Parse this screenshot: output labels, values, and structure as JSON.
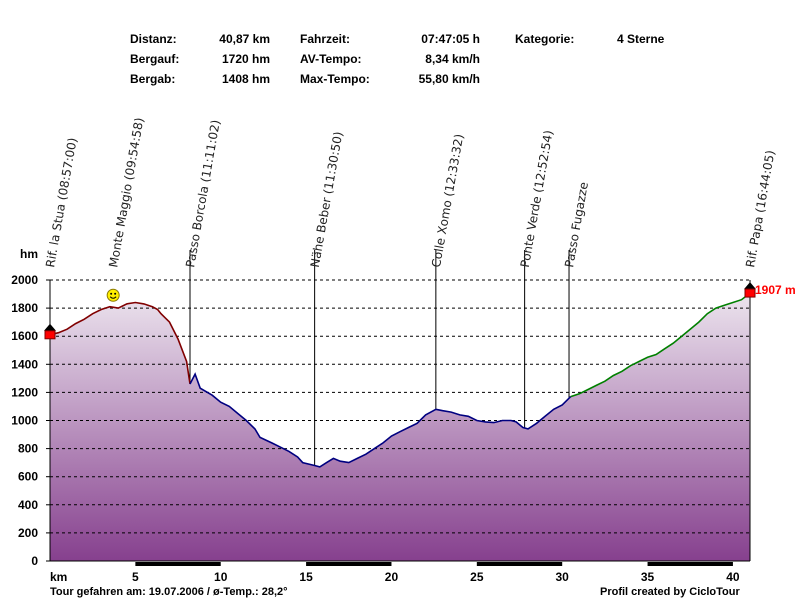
{
  "stats": {
    "distanz_label": "Distanz:",
    "distanz_value": "40,87 km",
    "bergauf_label": "Bergauf:",
    "bergauf_value": "1720 hm",
    "bergab_label": "Bergab:",
    "bergab_value": "1408 hm",
    "fahrzeit_label": "Fahrzeit:",
    "fahrzeit_value": "07:47:05 h",
    "avtempo_label": "AV-Tempo:",
    "avtempo_value": "8,34 km/h",
    "maxtempo_label": "Max-Tempo:",
    "maxtempo_value": "55,80 km/h",
    "kategorie_label": "Kategorie:",
    "kategorie_value": "4 Sterne"
  },
  "footer": {
    "left": "Tour gefahren am: 19.07.2006  /  ø-Temp.: 28,2°",
    "right": "Profil created by CicloTour"
  },
  "colors": {
    "fill_top": "#ece4ee",
    "fill_bottom": "#86408e",
    "line_downhill": "#800000",
    "line_flat": "#000080",
    "line_uphill": "#008000",
    "end_label": "#ff0000"
  },
  "chart_data": {
    "type": "area",
    "ylabel": "hm",
    "xlabel": "km",
    "xlim": [
      0,
      41
    ],
    "ylim": [
      0,
      2000
    ],
    "yticks": [
      0,
      200,
      400,
      600,
      800,
      1000,
      1200,
      1400,
      1600,
      1800,
      2000
    ],
    "xticks": [
      5,
      10,
      15,
      20,
      25,
      30,
      35,
      40
    ],
    "grid": true,
    "end_label": "1907 m",
    "profile": [
      [
        0,
        1610
      ],
      [
        0.5,
        1625
      ],
      [
        1,
        1650
      ],
      [
        1.5,
        1690
      ],
      [
        2,
        1720
      ],
      [
        2.5,
        1760
      ],
      [
        3,
        1790
      ],
      [
        3.5,
        1810
      ],
      [
        4,
        1800
      ],
      [
        4.5,
        1830
      ],
      [
        5,
        1840
      ],
      [
        5.5,
        1830
      ],
      [
        6,
        1810
      ],
      [
        6.3,
        1790
      ],
      [
        6.5,
        1760
      ],
      [
        7,
        1700
      ],
      [
        7.5,
        1580
      ],
      [
        8,
        1420
      ],
      [
        8.5,
        1330
      ],
      [
        8.2,
        1260
      ],
      [
        8.8,
        1230
      ],
      [
        9.5,
        1180
      ],
      [
        10,
        1130
      ],
      [
        10.5,
        1100
      ],
      [
        11,
        1050
      ],
      [
        11.5,
        1000
      ],
      [
        12,
        940
      ],
      [
        12.3,
        880
      ],
      [
        13,
        840
      ],
      [
        13.5,
        810
      ],
      [
        14,
        780
      ],
      [
        14.5,
        740
      ],
      [
        14.8,
        700
      ],
      [
        15.5,
        680
      ],
      [
        15.8,
        670
      ],
      [
        16.2,
        700
      ],
      [
        16.6,
        730
      ],
      [
        17,
        710
      ],
      [
        17.5,
        700
      ],
      [
        18,
        730
      ],
      [
        18.5,
        760
      ],
      [
        19,
        800
      ],
      [
        19.5,
        840
      ],
      [
        20,
        890
      ],
      [
        20.5,
        920
      ],
      [
        21,
        950
      ],
      [
        21.5,
        980
      ],
      [
        22,
        1040
      ],
      [
        22.6,
        1080
      ],
      [
        23,
        1070
      ],
      [
        23.5,
        1060
      ],
      [
        24,
        1040
      ],
      [
        24.5,
        1030
      ],
      [
        25,
        1000
      ],
      [
        25.5,
        990
      ],
      [
        26,
        985
      ],
      [
        26.5,
        1000
      ],
      [
        27,
        1000
      ],
      [
        27.3,
        990
      ],
      [
        27.7,
        950
      ],
      [
        28,
        940
      ],
      [
        28.5,
        980
      ],
      [
        29,
        1030
      ],
      [
        29.5,
        1080
      ],
      [
        30,
        1110
      ],
      [
        30.5,
        1170
      ],
      [
        31,
        1190
      ],
      [
        31.5,
        1220
      ],
      [
        32,
        1250
      ],
      [
        32.5,
        1280
      ],
      [
        33,
        1320
      ],
      [
        33.5,
        1350
      ],
      [
        34,
        1390
      ],
      [
        34.5,
        1420
      ],
      [
        35,
        1450
      ],
      [
        35.5,
        1470
      ],
      [
        36,
        1510
      ],
      [
        36.5,
        1550
      ],
      [
        37,
        1600
      ],
      [
        37.5,
        1650
      ],
      [
        38,
        1700
      ],
      [
        38.5,
        1760
      ],
      [
        39,
        1800
      ],
      [
        39.5,
        1820
      ],
      [
        40,
        1840
      ],
      [
        40.5,
        1860
      ],
      [
        41,
        1907
      ]
    ],
    "segments": [
      {
        "from": 0,
        "to": 8.2,
        "kind": "downhill"
      },
      {
        "from": 8.2,
        "to": 30.5,
        "kind": "flat"
      },
      {
        "from": 30.5,
        "to": 41,
        "kind": "uphill"
      }
    ],
    "waypoints": [
      {
        "km": 0,
        "label": "Rif. la Stua (08:57:00)"
      },
      {
        "km": 3.7,
        "label": "Monte Maggio (09:54:58)"
      },
      {
        "km": 8.2,
        "label": "Passo Borcola (11:11:02)"
      },
      {
        "km": 15.5,
        "label": "Nähe Beber (11:30:50)"
      },
      {
        "km": 22.6,
        "label": "Colle Xomo (12:33:32)"
      },
      {
        "km": 27.8,
        "label": "Ponte Verde (12:52:54)"
      },
      {
        "km": 30.4,
        "label": "Passo Fugazze"
      },
      {
        "km": 41,
        "label": "Rif. Papa (16:44:05)"
      }
    ]
  }
}
